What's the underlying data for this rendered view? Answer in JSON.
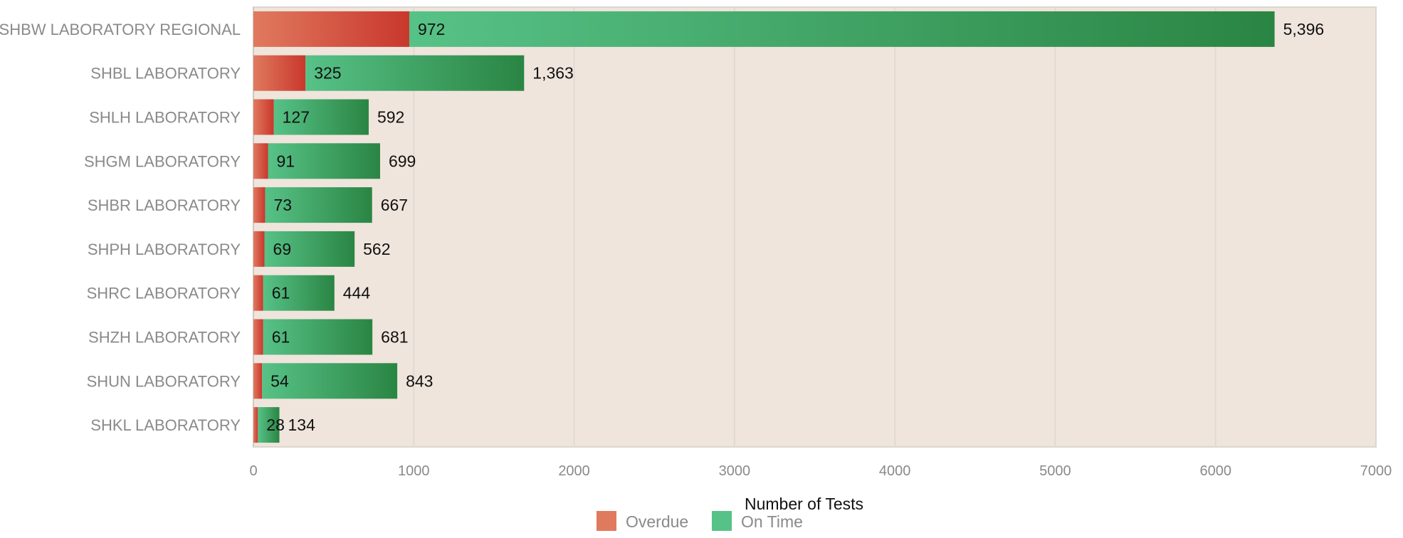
{
  "chart_data": {
    "type": "bar",
    "orientation": "horizontal",
    "stacked": true,
    "categories": [
      "SHBW LABORATORY REGIONAL",
      "SHBL LABORATORY",
      "SHLH LABORATORY",
      "SHGM LABORATORY",
      "SHBR LABORATORY",
      "SHPH LABORATORY",
      "SHRC LABORATORY",
      "SHZH LABORATORY",
      "SHUN LABORATORY",
      "SHKL LABORATORY"
    ],
    "series": [
      {
        "name": "Overdue",
        "values": [
          972,
          325,
          127,
          91,
          73,
          69,
          61,
          61,
          54,
          28
        ],
        "labels": [
          "972",
          "325",
          "127",
          "91",
          "73",
          "69",
          "61",
          "61",
          "54",
          "28"
        ],
        "color_light": "#e07a5f",
        "color_dark": "#c9372c"
      },
      {
        "name": "On Time",
        "values": [
          5396,
          1363,
          592,
          699,
          667,
          562,
          444,
          681,
          843,
          134
        ],
        "labels": [
          "5,396",
          "1,363",
          "592",
          "699",
          "667",
          "562",
          "444",
          "681",
          "843",
          "134"
        ],
        "color_light": "#57c287",
        "color_dark": "#2a8543"
      }
    ],
    "xlabel": "Number of Tests",
    "ylabel": "",
    "xlim": [
      0,
      7000
    ],
    "xticks": [
      "0",
      "1000",
      "2000",
      "3000",
      "4000",
      "5000",
      "6000",
      "7000"
    ],
    "grid": true,
    "legend_position": "bottom",
    "plot_background": "#efe5dc",
    "grid_color": "#e1dad3"
  }
}
